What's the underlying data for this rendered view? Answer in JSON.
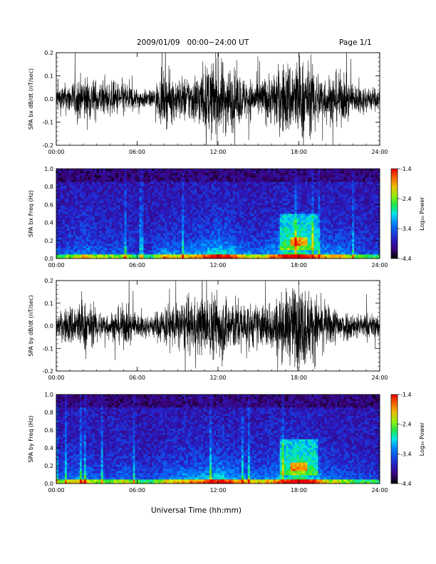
{
  "header": {
    "title": "2009/01/09   00:00−24:00 UT",
    "page": "Page 1/1"
  },
  "xlabel": "Universal Time (hh:mm)",
  "chart_data": [
    {
      "type": "line",
      "name": "bx-waveform",
      "ylabel": "SPA bx dB/dt (nT/sec)",
      "xlim_hours": [
        0,
        24
      ],
      "ylim": [
        -0.2,
        0.2
      ],
      "x_ticks": [
        "00:00",
        "06:00",
        "12:00",
        "18:00",
        "24:00"
      ],
      "y_ticks": [
        "-0.2",
        "-0.1",
        "0.0",
        "0.1",
        "0.2"
      ],
      "amplitude_envelope": {
        "hours": [
          0,
          1,
          2,
          3,
          4,
          5,
          6,
          7,
          8,
          9,
          10,
          11,
          12,
          13,
          14,
          15,
          16,
          17,
          18,
          19,
          20,
          21,
          22,
          23,
          24
        ],
        "values": [
          0.05,
          0.06,
          0.09,
          0.07,
          0.06,
          0.07,
          0.04,
          0.03,
          0.1,
          0.08,
          0.09,
          0.12,
          0.15,
          0.12,
          0.08,
          0.07,
          0.1,
          0.14,
          0.16,
          0.12,
          0.09,
          0.1,
          0.06,
          0.05,
          0.04
        ]
      }
    },
    {
      "type": "heatmap",
      "name": "bx-spectrogram",
      "ylabel": "SPA bx Freq (Hz)",
      "xlim_hours": [
        0,
        24
      ],
      "ylim": [
        0.0,
        1.0
      ],
      "x_ticks": [
        "00:00",
        "06:00",
        "12:00",
        "18:00",
        "24:00"
      ],
      "y_ticks": [
        "0.0",
        "0.2",
        "0.4",
        "0.6",
        "0.8",
        "1.0"
      ],
      "colorbar": {
        "label": "Log₁₀ Power",
        "ticks": [
          "-1.4",
          "-2.4",
          "-3.4",
          "-4.4"
        ],
        "range": [
          -4.4,
          -1.4
        ]
      }
    },
    {
      "type": "line",
      "name": "by-waveform",
      "ylabel": "SPA by dB/dt (nT/sec)",
      "xlim_hours": [
        0,
        24
      ],
      "ylim": [
        -0.2,
        0.2
      ],
      "x_ticks": [
        "00:00",
        "06:00",
        "12:00",
        "18:00",
        "24:00"
      ],
      "y_ticks": [
        "-0.2",
        "-0.1",
        "0.0",
        "0.1",
        "0.2"
      ],
      "amplitude_envelope": {
        "hours": [
          0,
          1,
          2,
          3,
          4,
          5,
          6,
          7,
          8,
          9,
          10,
          11,
          12,
          13,
          14,
          15,
          16,
          17,
          18,
          19,
          20,
          21,
          22,
          23,
          24
        ],
        "values": [
          0.04,
          0.08,
          0.1,
          0.06,
          0.05,
          0.08,
          0.05,
          0.04,
          0.08,
          0.09,
          0.1,
          0.11,
          0.14,
          0.11,
          0.09,
          0.08,
          0.1,
          0.13,
          0.17,
          0.13,
          0.08,
          0.07,
          0.05,
          0.05,
          0.04
        ]
      }
    },
    {
      "type": "heatmap",
      "name": "by-spectrogram",
      "ylabel": "SPA by Freq (Hz)",
      "xlim_hours": [
        0,
        24
      ],
      "ylim": [
        0.0,
        1.0
      ],
      "x_ticks": [
        "00:00",
        "06:00",
        "12:00",
        "18:00",
        "24:00"
      ],
      "y_ticks": [
        "0.0",
        "0.2",
        "0.4",
        "0.6",
        "0.8",
        "1.0"
      ],
      "colorbar": {
        "label": "Log₁₀ Power",
        "ticks": [
          "-1.4",
          "-2.4",
          "-3.4",
          "-4.4"
        ],
        "range": [
          -4.4,
          -1.4
        ]
      }
    }
  ]
}
